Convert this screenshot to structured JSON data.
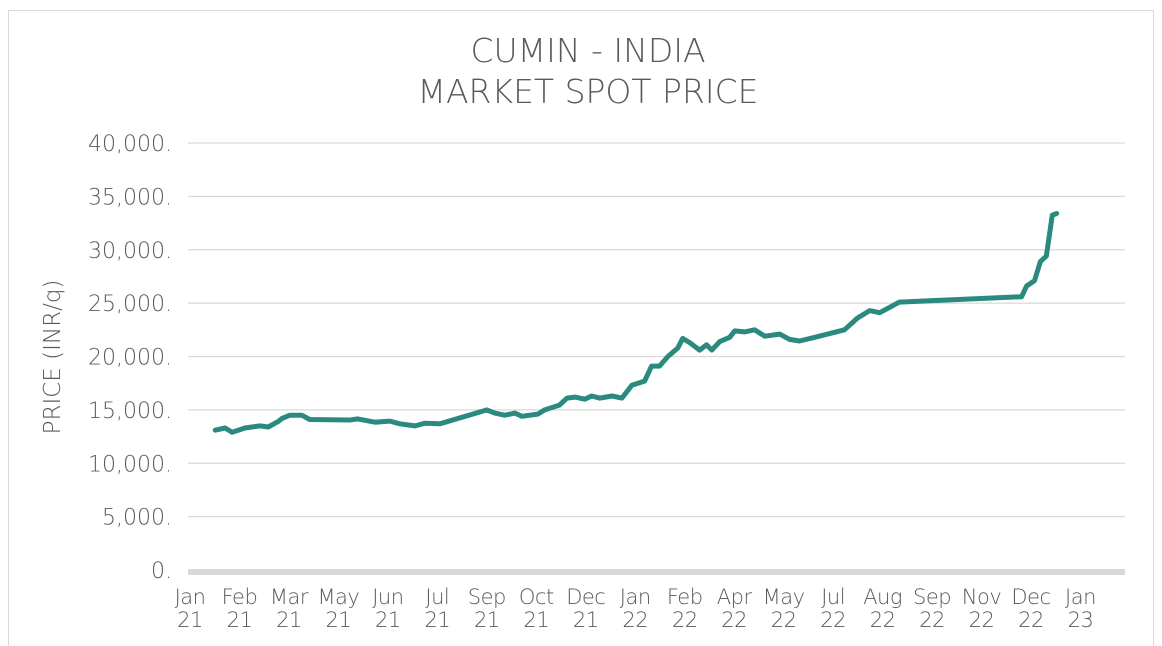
{
  "chart_data": {
    "type": "line",
    "title": [
      "CUMIN - INDIA",
      "MARKET SPOT PRICE"
    ],
    "y_label": "PRICE (INR/q)",
    "xlim": [
      0,
      18.9
    ],
    "xticks": [
      {
        "value": 0,
        "label": "Jan 21"
      },
      {
        "value": 1,
        "label": "Feb 21"
      },
      {
        "value": 2,
        "label": "Mar 21"
      },
      {
        "value": 3,
        "label": "May 21"
      },
      {
        "value": 4,
        "label": "Jun 21"
      },
      {
        "value": 5,
        "label": "Jul 21"
      },
      {
        "value": 6,
        "label": "Sep 21"
      },
      {
        "value": 7,
        "label": "Oct 21"
      },
      {
        "value": 8,
        "label": "Dec 21"
      },
      {
        "value": 9,
        "label": "Jan 22"
      },
      {
        "value": 10,
        "label": "Feb 22"
      },
      {
        "value": 11,
        "label": "Apr 22"
      },
      {
        "value": 12,
        "label": "May 22"
      },
      {
        "value": 13,
        "label": "Jul 22"
      },
      {
        "value": 14,
        "label": "Aug 22"
      },
      {
        "value": 15,
        "label": "Sep 22"
      },
      {
        "value": 16,
        "label": "Nov 22"
      },
      {
        "value": 17,
        "label": "Dec 22"
      },
      {
        "value": 18,
        "label": "Jan 23"
      }
    ],
    "ylim": [
      0,
      40000
    ],
    "yticks": [
      {
        "value": 0,
        "label": "0."
      },
      {
        "value": 5000,
        "label": "5,000."
      },
      {
        "value": 10000,
        "label": "10,000."
      },
      {
        "value": 15000,
        "label": "15,000."
      },
      {
        "value": 20000,
        "label": "20,000."
      },
      {
        "value": 25000,
        "label": "25,000."
      },
      {
        "value": 30000,
        "label": "30,000."
      },
      {
        "value": 35000,
        "label": "35,000."
      },
      {
        "value": 40000,
        "label": "40,000."
      }
    ],
    "grid": true,
    "x": [
      0.51,
      0.71,
      0.85,
      1.11,
      1.41,
      1.58,
      1.78,
      1.86,
      2.02,
      2.26,
      2.42,
      3.23,
      3.39,
      3.74,
      4.04,
      4.24,
      4.55,
      4.75,
      5.05,
      5.86,
      6.0,
      6.16,
      6.36,
      6.57,
      6.71,
      7.03,
      7.17,
      7.47,
      7.62,
      7.78,
      7.98,
      8.12,
      8.28,
      8.53,
      8.73,
      8.93,
      9.19,
      9.33,
      9.49,
      9.66,
      9.86,
      9.96,
      10.1,
      10.3,
      10.44,
      10.55,
      10.71,
      10.91,
      11.01,
      11.21,
      11.41,
      11.62,
      11.92,
      12.12,
      12.32,
      12.63,
      13.23,
      13.49,
      13.74,
      13.94,
      14.14,
      14.34,
      16.81,
      16.91,
      17.07,
      17.19,
      17.31,
      17.43,
      17.52
    ],
    "series": [
      {
        "color": "#2a8a80",
        "values": [
          13100,
          13300,
          12900,
          13300,
          13500,
          13400,
          13900,
          14200,
          14500,
          14500,
          14100,
          14050,
          14150,
          13850,
          13950,
          13700,
          13500,
          13750,
          13700,
          14800,
          15000,
          14700,
          14500,
          14700,
          14400,
          14600,
          15000,
          15450,
          16100,
          16200,
          16000,
          16300,
          16100,
          16300,
          16100,
          17300,
          17700,
          19100,
          19100,
          20000,
          20800,
          21700,
          21300,
          20600,
          21100,
          20600,
          21400,
          21800,
          22400,
          22300,
          22500,
          21900,
          22100,
          21600,
          21450,
          21800,
          22500,
          23600,
          24300,
          24100,
          24600,
          25100,
          25600,
          26600,
          27100,
          28900,
          29400,
          33250,
          33400
        ]
      }
    ]
  }
}
